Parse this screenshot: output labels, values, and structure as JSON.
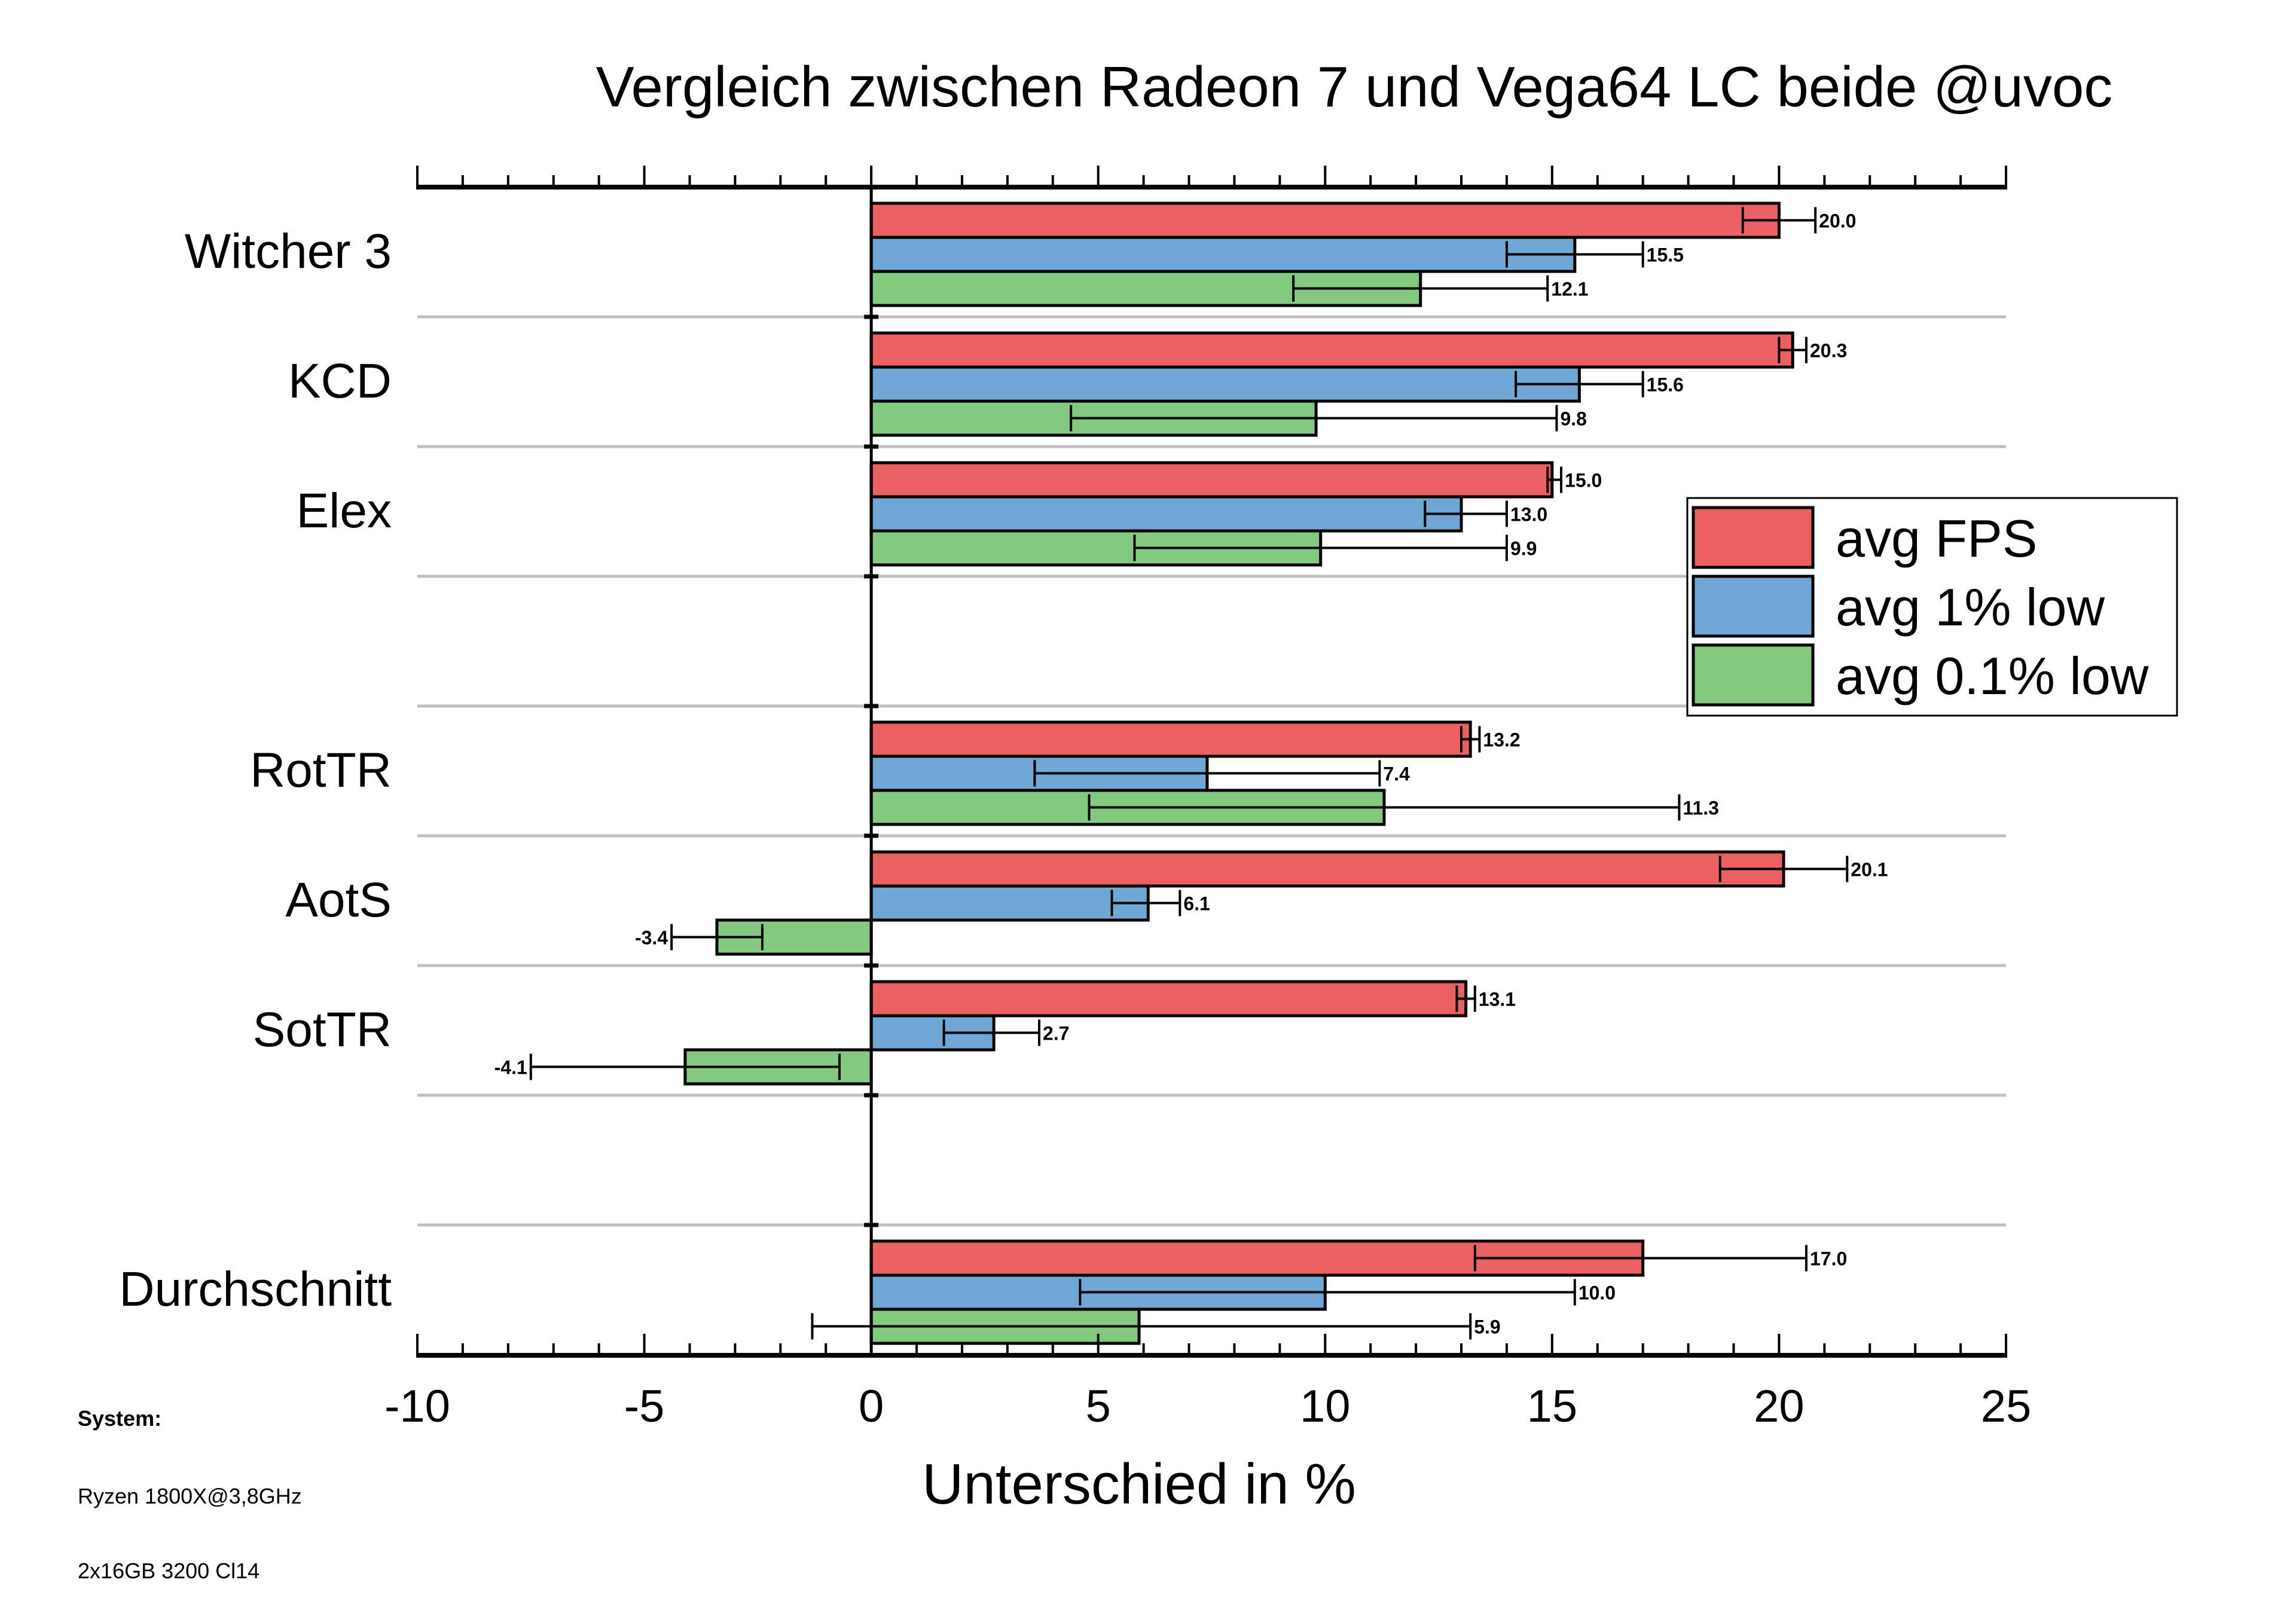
{
  "chart_data": {
    "type": "bar",
    "orientation": "horizontal",
    "title": "Vergleich zwischen Radeon 7 und Vega64 LC beide @uvoc",
    "xlabel": "Unterschied in %",
    "ylabel": "",
    "xlim": [
      -10,
      25
    ],
    "x_ticks": [
      "-10",
      "-5",
      "0",
      "5",
      "10",
      "15",
      "20",
      "25"
    ],
    "x_tick_values": [
      -10,
      -5,
      0,
      5,
      10,
      15,
      20,
      25
    ],
    "minor_tick_step": 1,
    "grid": "horizontal group separators",
    "legend_position": "right",
    "categories": [
      "Witcher 3",
      "KCD",
      "Elex",
      "",
      "RotTR",
      "AotS",
      "SotTR",
      "",
      "Durchschnitt"
    ],
    "series": [
      {
        "name": "avg FPS",
        "color": "#EB6060",
        "values": [
          20.0,
          20.3,
          15.0,
          null,
          13.2,
          20.1,
          13.1,
          null,
          17.0
        ],
        "labels": [
          "20.0",
          "20.3",
          "15.0",
          null,
          "13.2",
          "20.1",
          "13.1",
          null,
          "17.0"
        ],
        "error_low": [
          19.2,
          20.0,
          14.9,
          null,
          13.0,
          18.7,
          12.9,
          null,
          13.3
        ],
        "error_high": [
          20.8,
          20.6,
          15.2,
          null,
          13.4,
          21.5,
          13.3,
          null,
          20.6
        ]
      },
      {
        "name": "avg 1% low",
        "color": "#6FA7D6",
        "values": [
          15.5,
          15.6,
          13.0,
          null,
          7.4,
          6.1,
          2.7,
          null,
          10.0
        ],
        "labels": [
          "15.5",
          "15.6",
          "13.0",
          null,
          "7.4",
          "6.1",
          "2.7",
          null,
          "10.0"
        ],
        "error_low": [
          14.0,
          14.2,
          12.2,
          null,
          3.6,
          5.3,
          1.6,
          null,
          4.6
        ],
        "error_high": [
          17.0,
          17.0,
          14.0,
          null,
          11.2,
          6.8,
          3.7,
          null,
          15.5
        ]
      },
      {
        "name": "avg 0.1% low",
        "color": "#83CA80",
        "values": [
          12.1,
          9.8,
          9.9,
          null,
          11.3,
          -3.4,
          -4.1,
          null,
          5.9
        ],
        "labels": [
          "12.1",
          "9.8",
          "9.9",
          null,
          "11.3",
          "-3.4",
          "-4.1",
          null,
          "5.9"
        ],
        "error_low": [
          9.3,
          4.4,
          5.8,
          null,
          4.8,
          -4.4,
          -7.5,
          null,
          -1.3
        ],
        "error_high": [
          14.9,
          15.1,
          14.0,
          null,
          17.8,
          -2.4,
          -0.7,
          null,
          13.2
        ]
      }
    ]
  },
  "system_info": {
    "heading": "System:",
    "lines": [
      "Ryzen 1800X@3,8GHz",
      "2x16GB 3200 Cl14"
    ]
  }
}
